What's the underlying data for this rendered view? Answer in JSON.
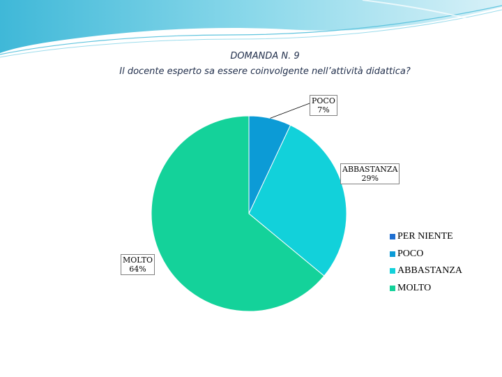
{
  "slide": {
    "title_line1": "DOMANDA N. 9",
    "title_line2": "Il docente esperto sa essere coinvolgente nell’attività didattica?"
  },
  "chart_data": {
    "type": "pie",
    "categories": [
      "PER NIENTE",
      "POCO",
      "ABBASTANZA",
      "MOLTO"
    ],
    "values": [
      0,
      7,
      29,
      64
    ],
    "value_labels": [
      "",
      "7%",
      "29%",
      "64%"
    ],
    "colors": [
      "#1f6fd1",
      "#0c9bd6",
      "#12d1da",
      "#14d29a"
    ],
    "start_angle_deg": 0,
    "direction": "clockwise",
    "legend_position": "right"
  }
}
